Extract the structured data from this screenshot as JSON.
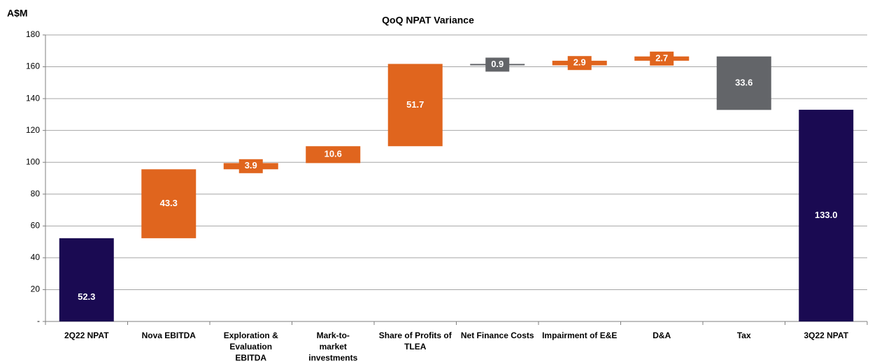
{
  "chart_data": {
    "type": "waterfall",
    "title": "QoQ NPAT Variance",
    "y_label": "A$M",
    "categories": [
      "2Q22 NPAT",
      "Nova EBITDA",
      "Exploration & Evaluation EBITDA",
      "Mark-to-market investments",
      "Share of Profits of TLEA",
      "Net Finance Costs",
      "Impairment of E&E",
      "D&A",
      "Tax",
      "3Q22 NPAT"
    ],
    "values": [
      52.3,
      43.3,
      3.9,
      10.6,
      51.7,
      -0.9,
      2.9,
      2.7,
      -33.6,
      133.0
    ],
    "value_labels": [
      "52.3",
      "43.3",
      "3.9",
      "10.6",
      "51.7",
      "0.9",
      "2.9",
      "2.7",
      "33.6",
      "133.0"
    ],
    "measure": [
      "total",
      "relative",
      "relative",
      "relative",
      "relative",
      "relative",
      "relative",
      "relative",
      "relative",
      "total"
    ],
    "colors": {
      "total": "#1a0a52",
      "increase": "#e0651e",
      "decrease": "#636569"
    },
    "ylim": [
      0,
      180
    ],
    "yticks": [
      {
        "value": 0,
        "label": "-"
      },
      20,
      40,
      60,
      80,
      100,
      120,
      140,
      160,
      180
    ],
    "grid": true
  }
}
